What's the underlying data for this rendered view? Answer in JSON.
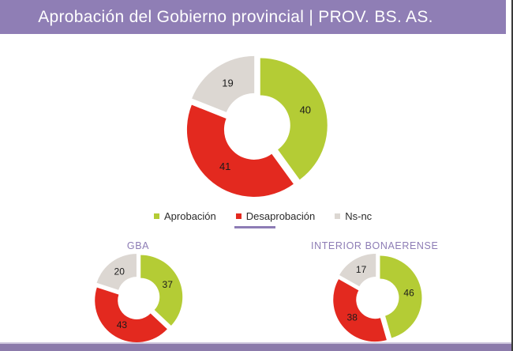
{
  "header": {
    "title": "Aprobación del Gobierno provincial | PROV. BS. AS."
  },
  "colors": {
    "aprobacion": "#b4cc35",
    "desaprobacion": "#e3291f",
    "nsnc": "#dcd7d2",
    "accent_purple": "#8d7cb5",
    "header_bg": "#8f7eb5",
    "footer_bg": "#8c7bab",
    "footer_edge": "#cdc5dc"
  },
  "legend": {
    "items": [
      {
        "label": "Aprobación",
        "color": "#b4cc35"
      },
      {
        "label": "Desaprobación",
        "color": "#e3291f"
      },
      {
        "label": "Ns-nc",
        "color": "#dcd7d2"
      }
    ]
  },
  "chart_data": [
    {
      "type": "pie",
      "subtype": "donut",
      "title": "",
      "categories": [
        "Aprobación",
        "Desaprobación",
        "Ns-nc"
      ],
      "values": [
        40,
        41,
        19
      ],
      "legend_position": "bottom"
    },
    {
      "type": "pie",
      "subtype": "donut",
      "title": "GBA",
      "categories": [
        "Aprobación",
        "Desaprobación",
        "Ns-nc"
      ],
      "values": [
        37,
        43,
        20
      ]
    },
    {
      "type": "pie",
      "subtype": "donut",
      "title": "INTERIOR BONAERENSE",
      "categories": [
        "Aprobación",
        "Desaprobación",
        "Ns-nc"
      ],
      "values": [
        46,
        38,
        17
      ]
    }
  ]
}
